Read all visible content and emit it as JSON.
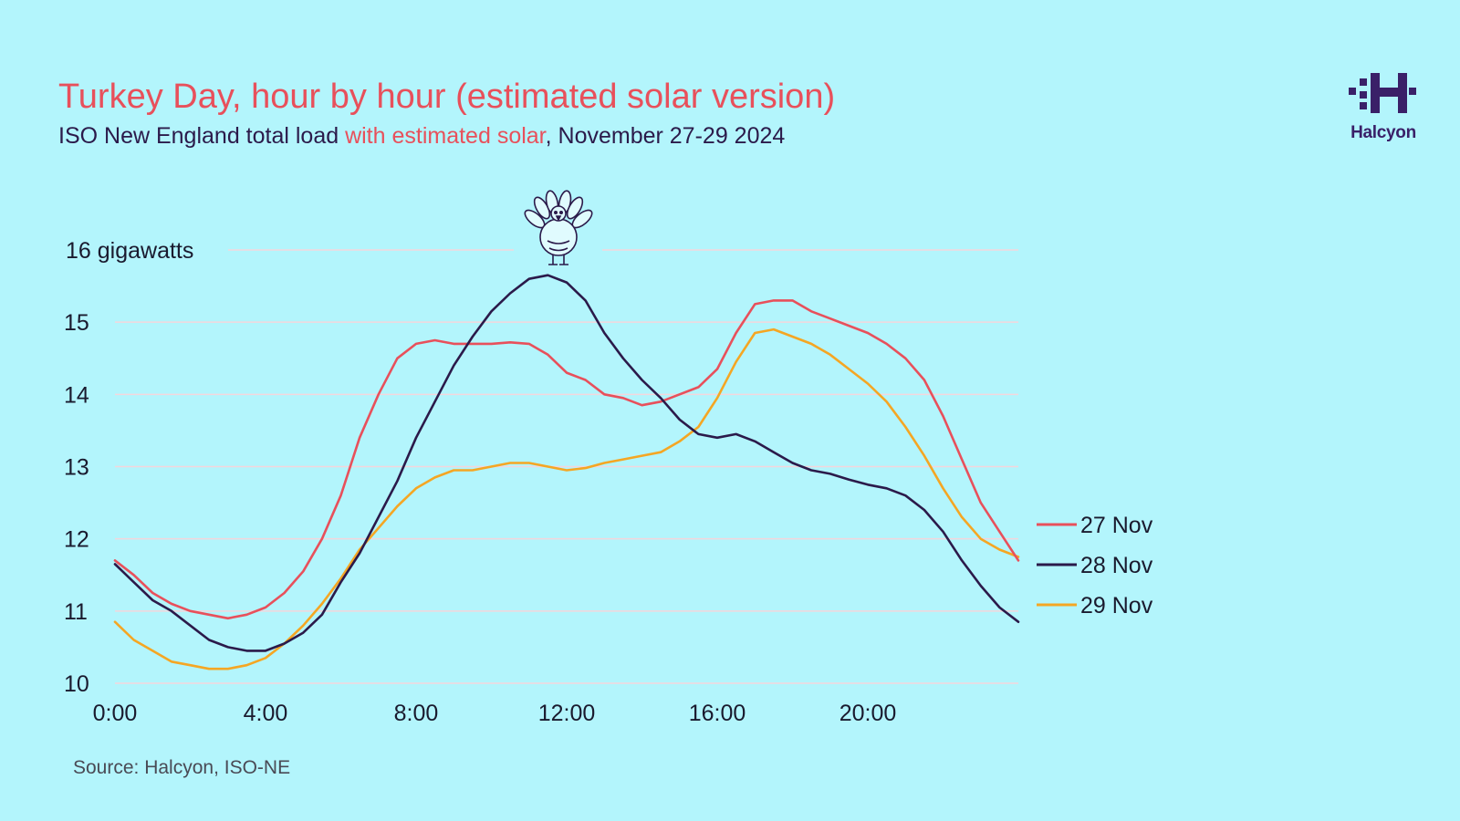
{
  "header": {
    "title": "Turkey Day, hour by hour (estimated solar version)",
    "subtitle_prefix": "ISO New England total load ",
    "subtitle_highlight": "with estimated solar",
    "subtitle_suffix": ", November 27-29 2024"
  },
  "brand": {
    "name": "Halcyon"
  },
  "footer": {
    "source": "Source: Halcyon, ISO-NE"
  },
  "colors": {
    "background": "#b3f5fc",
    "title": "#e8505b",
    "nov27": "#e8505b",
    "nov28": "#2b1a4a",
    "nov29": "#f5a623",
    "grid": "#f4d6dc"
  },
  "icons": {
    "peak_marker": "turkey-icon",
    "logo": "halcyon-logo-icon"
  },
  "chart_data": {
    "type": "line",
    "title": "Turkey Day, hour by hour (estimated solar version)",
    "xlabel": "",
    "ylabel": "gigawatts",
    "x_unit": "hour",
    "xlim": [
      0,
      24
    ],
    "ylim": [
      10,
      16
    ],
    "y_ticks": [
      10,
      11,
      12,
      13,
      14,
      15,
      16
    ],
    "y_tick_labels": [
      "10",
      "11",
      "12",
      "13",
      "14",
      "15",
      "16 gigawatts"
    ],
    "x_ticks": [
      0,
      4,
      8,
      12,
      16,
      20
    ],
    "x_tick_labels": [
      "0:00",
      "4:00",
      "8:00",
      "12:00",
      "16:00",
      "20:00"
    ],
    "grid": true,
    "legend_position": "right",
    "x": [
      0,
      0.5,
      1,
      1.5,
      2,
      2.5,
      3,
      3.5,
      4,
      4.5,
      5,
      5.5,
      6,
      6.5,
      7,
      7.5,
      8,
      8.5,
      9,
      9.5,
      10,
      10.5,
      11,
      11.5,
      12,
      12.5,
      13,
      13.5,
      14,
      14.5,
      15,
      15.5,
      16,
      16.5,
      17,
      17.5,
      18,
      18.5,
      19,
      19.5,
      20,
      20.5,
      21,
      21.5,
      22,
      22.5,
      23,
      23.5,
      24
    ],
    "series": [
      {
        "name": "27 Nov",
        "color": "#e8505b",
        "values": [
          11.7,
          11.5,
          11.25,
          11.1,
          11.0,
          10.95,
          10.9,
          10.95,
          11.05,
          11.25,
          11.55,
          12.0,
          12.6,
          13.4,
          14.0,
          14.5,
          14.7,
          14.75,
          14.7,
          14.7,
          14.7,
          14.72,
          14.7,
          14.55,
          14.3,
          14.2,
          14.0,
          13.95,
          13.85,
          13.9,
          14.0,
          14.1,
          14.35,
          14.85,
          15.25,
          15.3,
          15.3,
          15.15,
          15.05,
          14.95,
          14.85,
          14.7,
          14.5,
          14.2,
          13.7,
          13.1,
          12.5,
          12.1,
          11.7
        ]
      },
      {
        "name": "28 Nov",
        "color": "#2b1a4a",
        "values": [
          11.65,
          11.4,
          11.15,
          11.0,
          10.8,
          10.6,
          10.5,
          10.45,
          10.45,
          10.55,
          10.7,
          10.95,
          11.4,
          11.8,
          12.3,
          12.8,
          13.4,
          13.9,
          14.4,
          14.8,
          15.15,
          15.4,
          15.6,
          15.65,
          15.55,
          15.3,
          14.85,
          14.5,
          14.2,
          13.95,
          13.65,
          13.45,
          13.4,
          13.45,
          13.35,
          13.2,
          13.05,
          12.95,
          12.9,
          12.82,
          12.75,
          12.7,
          12.6,
          12.4,
          12.1,
          11.7,
          11.35,
          11.05,
          10.85
        ]
      },
      {
        "name": "29 Nov",
        "color": "#f5a623",
        "values": [
          10.85,
          10.6,
          10.45,
          10.3,
          10.25,
          10.2,
          10.2,
          10.25,
          10.35,
          10.55,
          10.8,
          11.1,
          11.45,
          11.85,
          12.15,
          12.45,
          12.7,
          12.85,
          12.95,
          12.95,
          13.0,
          13.05,
          13.05,
          13.0,
          12.95,
          12.98,
          13.05,
          13.1,
          13.15,
          13.2,
          13.35,
          13.55,
          13.95,
          14.45,
          14.85,
          14.9,
          14.8,
          14.7,
          14.55,
          14.35,
          14.15,
          13.9,
          13.55,
          13.15,
          12.7,
          12.3,
          12.0,
          11.85,
          11.75
        ]
      }
    ]
  }
}
